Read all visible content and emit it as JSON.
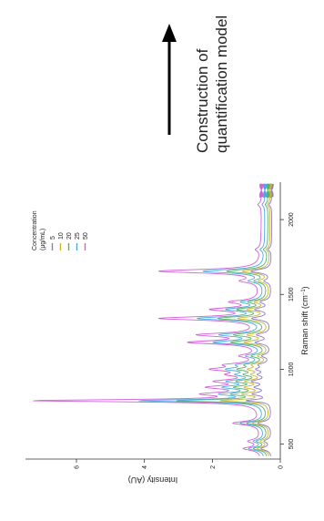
{
  "annotation": {
    "line1": "Construction of",
    "line2": "quantification model"
  },
  "colors": {
    "axis": "#333333",
    "arrow": "#000000"
  },
  "chart_data": {
    "type": "line",
    "orientation": "rotated-90-clockwise",
    "xlabel": "Raman shift (cm⁻¹)",
    "xlabel_main": "Raman shift (cm",
    "xlabel_sup": "−1",
    "xlabel_close": ")",
    "ylabel": "Intensity (AU)",
    "xlim": [
      400,
      2250
    ],
    "ylim": [
      0,
      7.5
    ],
    "xticks": [
      "500",
      "1000",
      "1500",
      "2000"
    ],
    "yticks": [
      "0",
      "2",
      "4",
      "6"
    ],
    "legend": {
      "title_line1": "Concentration",
      "title_line2": "(μg/mL)",
      "placement": "upper-right"
    },
    "baseline": [
      0.25,
      0.3,
      0.36,
      0.45,
      0.55
    ],
    "series": [
      {
        "name": "5",
        "color": "#8c78c8",
        "peaks": [
          [
            470,
            0.3
          ],
          [
            520,
            0.2
          ],
          [
            640,
            0.4
          ],
          [
            790,
            0.7
          ],
          [
            835,
            0.5
          ],
          [
            880,
            0.4
          ],
          [
            920,
            0.5
          ],
          [
            965,
            0.3
          ],
          [
            1000,
            0.35
          ],
          [
            1030,
            0.3
          ],
          [
            1090,
            0.25
          ],
          [
            1180,
            0.45
          ],
          [
            1230,
            0.4
          ],
          [
            1340,
            0.55
          ],
          [
            1400,
            0.45
          ],
          [
            1450,
            0.3
          ],
          [
            1590,
            0.2
          ],
          [
            1655,
            0.6
          ],
          [
            1800,
            0.1
          ],
          [
            2100,
            0.08
          ]
        ]
      },
      {
        "name": "10",
        "color": "#c8b432",
        "peaks": [
          [
            470,
            0.35
          ],
          [
            520,
            0.25
          ],
          [
            640,
            0.5
          ],
          [
            790,
            1.4
          ],
          [
            835,
            0.7
          ],
          [
            880,
            0.6
          ],
          [
            920,
            0.6
          ],
          [
            965,
            0.4
          ],
          [
            1000,
            0.5
          ],
          [
            1030,
            0.4
          ],
          [
            1090,
            0.3
          ],
          [
            1180,
            0.7
          ],
          [
            1230,
            0.6
          ],
          [
            1340,
            0.9
          ],
          [
            1400,
            0.6
          ],
          [
            1450,
            0.4
          ],
          [
            1590,
            0.3
          ],
          [
            1655,
            0.8
          ],
          [
            1800,
            0.1
          ],
          [
            2100,
            0.08
          ]
        ]
      },
      {
        "name": "20",
        "color": "#55b068",
        "peaks": [
          [
            470,
            0.4
          ],
          [
            520,
            0.3
          ],
          [
            640,
            0.6
          ],
          [
            790,
            2.6
          ],
          [
            835,
            0.9
          ],
          [
            880,
            0.8
          ],
          [
            920,
            0.75
          ],
          [
            965,
            0.5
          ],
          [
            1000,
            0.7
          ],
          [
            1030,
            0.5
          ],
          [
            1090,
            0.4
          ],
          [
            1180,
            1.0
          ],
          [
            1230,
            0.9
          ],
          [
            1340,
            1.4
          ],
          [
            1400,
            0.8
          ],
          [
            1450,
            0.5
          ],
          [
            1590,
            0.35
          ],
          [
            1655,
            1.2
          ],
          [
            1800,
            0.12
          ],
          [
            2100,
            0.08
          ]
        ]
      },
      {
        "name": "25",
        "color": "#4aa8e0",
        "peaks": [
          [
            470,
            0.45
          ],
          [
            520,
            0.3
          ],
          [
            640,
            0.7
          ],
          [
            790,
            3.6
          ],
          [
            835,
            1.1
          ],
          [
            880,
            1.0
          ],
          [
            920,
            0.9
          ],
          [
            965,
            0.6
          ],
          [
            1000,
            0.9
          ],
          [
            1030,
            0.6
          ],
          [
            1090,
            0.45
          ],
          [
            1180,
            1.4
          ],
          [
            1230,
            1.2
          ],
          [
            1340,
            1.9
          ],
          [
            1400,
            1.0
          ],
          [
            1450,
            0.6
          ],
          [
            1590,
            0.4
          ],
          [
            1655,
            1.8
          ],
          [
            1800,
            0.12
          ],
          [
            2100,
            0.08
          ]
        ]
      },
      {
        "name": "50",
        "color": "#d060d8",
        "peaks": [
          [
            470,
            0.5
          ],
          [
            520,
            0.35
          ],
          [
            640,
            0.8
          ],
          [
            790,
            6.6
          ],
          [
            835,
            1.4
          ],
          [
            880,
            1.3
          ],
          [
            920,
            1.1
          ],
          [
            965,
            0.7
          ],
          [
            1000,
            1.2
          ],
          [
            1030,
            0.8
          ],
          [
            1090,
            0.5
          ],
          [
            1180,
            2.0
          ],
          [
            1230,
            1.7
          ],
          [
            1340,
            2.9
          ],
          [
            1400,
            1.3
          ],
          [
            1450,
            0.8
          ],
          [
            1590,
            0.5
          ],
          [
            1655,
            3.0
          ],
          [
            1800,
            0.15
          ],
          [
            2100,
            0.1
          ]
        ]
      }
    ]
  }
}
